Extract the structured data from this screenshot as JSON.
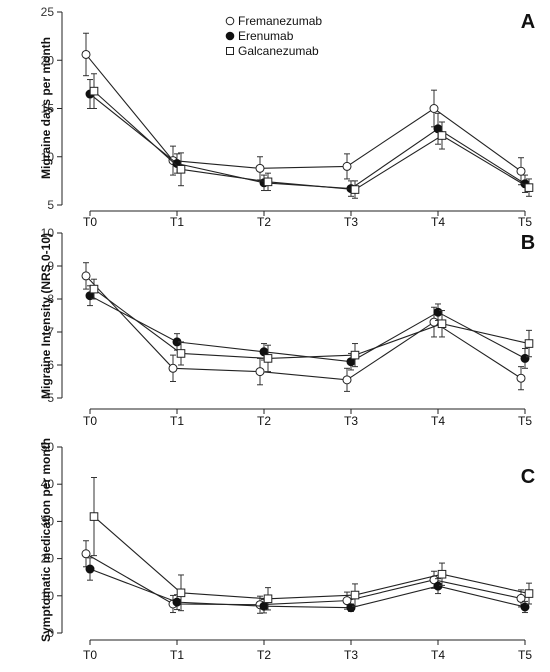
{
  "legend": {
    "entries": [
      "Fremanezumab",
      "Erenumab",
      "Galcanezumab"
    ]
  },
  "chart_data": [
    {
      "type": "line",
      "panel_label": "A",
      "ylabel": "Migraine days per month",
      "categories": [
        "T0",
        "T1",
        "T2",
        "T3",
        "T4",
        "T5"
      ],
      "ylim": [
        5,
        25
      ],
      "yticks": [
        5,
        10,
        15,
        20,
        25
      ],
      "grid": false,
      "series": [
        {
          "name": "Fremanezumab",
          "marker": "open-circle",
          "values": [
            20.6,
            9.6,
            8.8,
            9.0,
            15.0,
            8.5
          ],
          "err": [
            2.2,
            1.5,
            1.2,
            1.3,
            1.9,
            1.4
          ]
        },
        {
          "name": "Erenumab",
          "marker": "filled-circle",
          "values": [
            16.5,
            9.3,
            7.3,
            6.7,
            12.9,
            7.2
          ],
          "err": [
            1.5,
            1.0,
            0.8,
            0.8,
            1.6,
            0.9
          ]
        },
        {
          "name": "Galcanezumab",
          "marker": "open-square",
          "values": [
            16.8,
            8.7,
            7.4,
            6.6,
            12.2,
            6.8
          ],
          "err": [
            1.8,
            1.7,
            0.9,
            0.9,
            1.4,
            0.9
          ]
        }
      ]
    },
    {
      "type": "line",
      "panel_label": "B",
      "ylabel": "Migraine Intensity (NRS 0-10)",
      "categories": [
        "T0",
        "T1",
        "T2",
        "T3",
        "T4",
        "T5"
      ],
      "ylim": [
        5,
        10
      ],
      "yticks": [
        5,
        6,
        7,
        8,
        9,
        10
      ],
      "grid": false,
      "series": [
        {
          "name": "Fremanezumab",
          "marker": "open-circle",
          "values": [
            8.7,
            5.9,
            5.8,
            5.55,
            7.3,
            5.6
          ],
          "err": [
            0.4,
            0.4,
            0.4,
            0.35,
            0.45,
            0.35
          ]
        },
        {
          "name": "Erenumab",
          "marker": "filled-circle",
          "values": [
            8.1,
            6.7,
            6.4,
            6.1,
            7.6,
            6.2
          ],
          "err": [
            0.3,
            0.25,
            0.25,
            0.25,
            0.25,
            0.3
          ]
        },
        {
          "name": "Galcanezumab",
          "marker": "open-square",
          "values": [
            8.3,
            6.35,
            6.2,
            6.3,
            7.25,
            6.65
          ],
          "err": [
            0.3,
            0.35,
            0.4,
            0.35,
            0.4,
            0.4
          ]
        }
      ]
    },
    {
      "type": "line",
      "panel_label": "C",
      "ylabel": "Symptomatic medication per month",
      "categories": [
        "T0",
        "T1",
        "T2",
        "T3",
        "T4",
        "T5"
      ],
      "ylim": [
        0,
        50
      ],
      "yticks": [
        0,
        10,
        20,
        30,
        40,
        50
      ],
      "grid": false,
      "series": [
        {
          "name": "Fremanezumab",
          "marker": "open-circle",
          "values": [
            21.3,
            7.8,
            7.6,
            8.7,
            14.3,
            9.3
          ],
          "err": [
            3.5,
            2.3,
            2.3,
            2.3,
            2.3,
            2.3
          ]
        },
        {
          "name": "Erenumab",
          "marker": "filled-circle",
          "values": [
            17.2,
            8.3,
            7.2,
            6.8,
            12.6,
            7.0
          ],
          "err": [
            3.0,
            2.0,
            1.8,
            1.0,
            2.0,
            1.5
          ]
        },
        {
          "name": "Galcanezumab",
          "marker": "open-square",
          "values": [
            31.3,
            10.8,
            9.2,
            10.2,
            15.8,
            10.6
          ],
          "err": [
            10.5,
            4.8,
            3.0,
            3.0,
            3.0,
            2.8
          ]
        }
      ]
    }
  ]
}
